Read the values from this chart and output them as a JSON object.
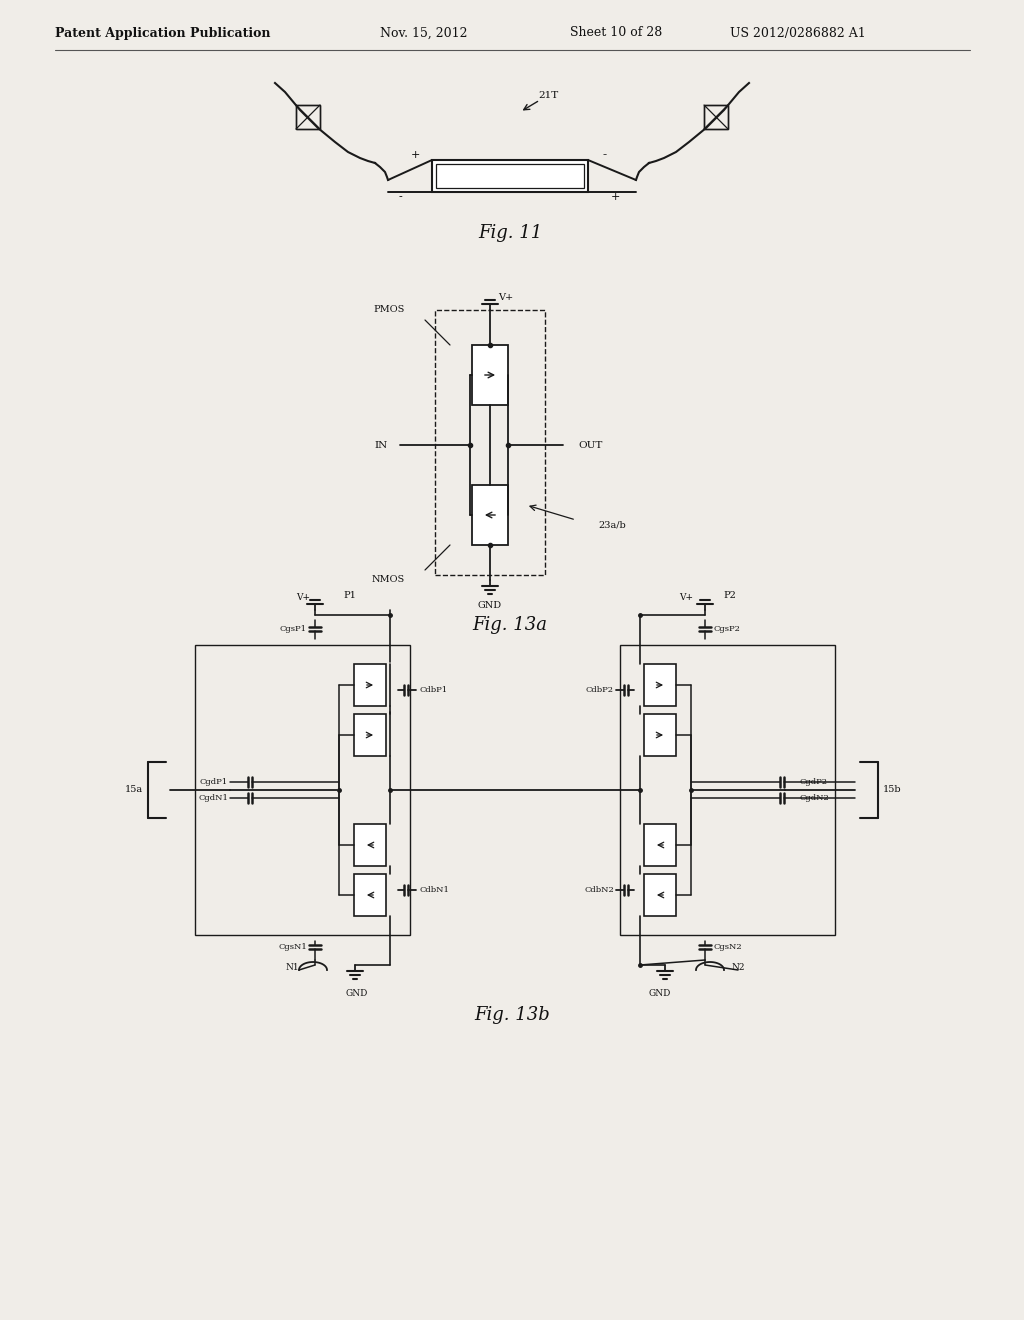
{
  "bg_color": "#f0ede8",
  "header_text": "Patent Application Publication",
  "header_date": "Nov. 15, 2012",
  "header_sheet": "Sheet 10 of 28",
  "header_patent": "US 2012/0286882 A1",
  "fig11_caption": "Fig. 11",
  "fig13a_caption": "Fig. 13a",
  "fig13b_caption": "Fig. 13b",
  "line_color": "#1a1a1a",
  "text_color": "#111111"
}
